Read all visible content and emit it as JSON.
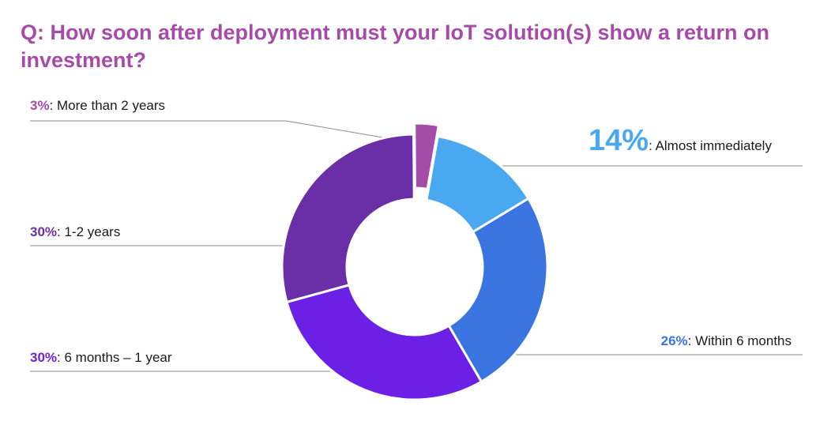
{
  "title": "Q: How soon after deployment must your IoT solution(s) show a return on investment?",
  "colors": {
    "title": "#a74ba8",
    "leader_line": "#8c8c8c",
    "label_text": "#1a1a1a"
  },
  "chart_data": {
    "type": "pie",
    "variant": "donut",
    "title": "Q: How soon after deployment must your IoT solution(s) show a return on investment?",
    "slices": [
      {
        "name": "Almost immediately",
        "value": 14,
        "pct_label": "14%",
        "desc": ": Almost immediately",
        "color": "#4aa8f0",
        "side": "right"
      },
      {
        "name": "Within 6 months",
        "value": 26,
        "pct_label": "26%",
        "desc": ": Within 6 months",
        "color": "#3a74e0",
        "side": "right"
      },
      {
        "name": "6 months – 1 year",
        "value": 30,
        "pct_label": "30%",
        "desc": ": 6 months – 1 year",
        "color": "#6c20e6",
        "side": "left"
      },
      {
        "name": "1-2 years",
        "value": 30,
        "pct_label": "30%",
        "desc": ": 1-2 years",
        "color": "#6a2fa6",
        "side": "left"
      },
      {
        "name": "More than 2 years",
        "value": 3,
        "pct_label": "3%",
        "desc": ": More than 2 years",
        "color": "#a54ba8",
        "side": "left",
        "exploded": true
      }
    ]
  }
}
